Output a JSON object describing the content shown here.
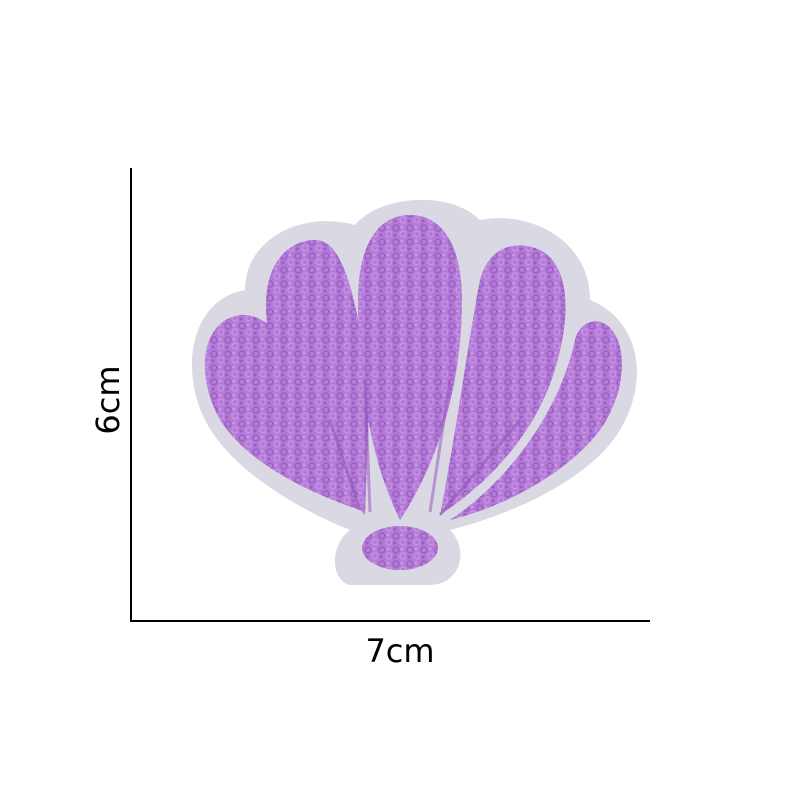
{
  "dimensions": {
    "width_label": "7cm",
    "height_label": "6cm"
  },
  "colors": {
    "felt_border": "#d9d8e3",
    "chenille": "#b37ad6",
    "chenille_shadow": "#9a5fc4",
    "chenille_highlight": "#c995e6",
    "axis": "#000000"
  },
  "product": {
    "icon": "seashell-icon"
  }
}
